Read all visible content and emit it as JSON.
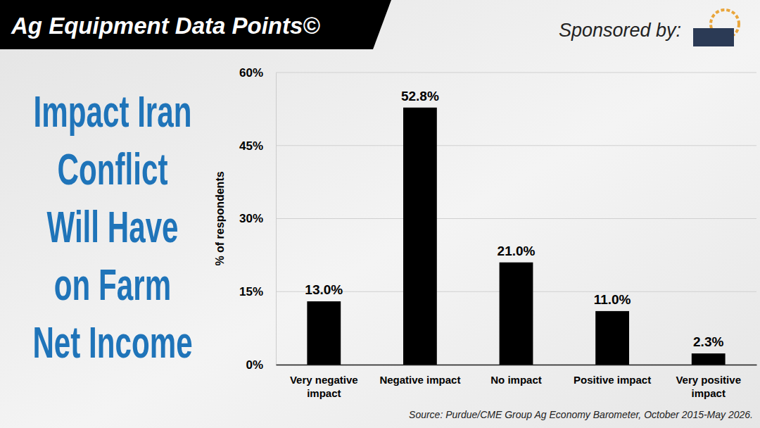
{
  "chart_data": {
    "type": "bar",
    "title": "Impact Iran Conflict Will Have on Farm Net Income",
    "header": "Ag Equipment Data Points©",
    "sponsor": "Sponsored by:",
    "source": "Source: Purdue/CME Group Ag Economy Barometer, October 2015-May 2026.",
    "y_label": "% of respondents",
    "categories": [
      "Very negative impact",
      "Negative impact",
      "No impact",
      "Positive impact",
      "Very positive impact"
    ],
    "values": [
      13.0,
      52.8,
      21.0,
      11.0,
      2.3
    ],
    "value_labels": [
      "13.0%",
      "52.8%",
      "21.0%",
      "11.0%",
      "2.3%"
    ],
    "color": "#000000",
    "ylim": [
      0,
      60
    ],
    "yticks": [
      {
        "value": 0,
        "label": "0%"
      },
      {
        "value": 15,
        "label": "15%"
      },
      {
        "value": 30,
        "label": "30%"
      },
      {
        "value": 45,
        "label": "45%"
      },
      {
        "value": 60,
        "label": "60%"
      }
    ],
    "grid": true,
    "data_labels": true
  }
}
